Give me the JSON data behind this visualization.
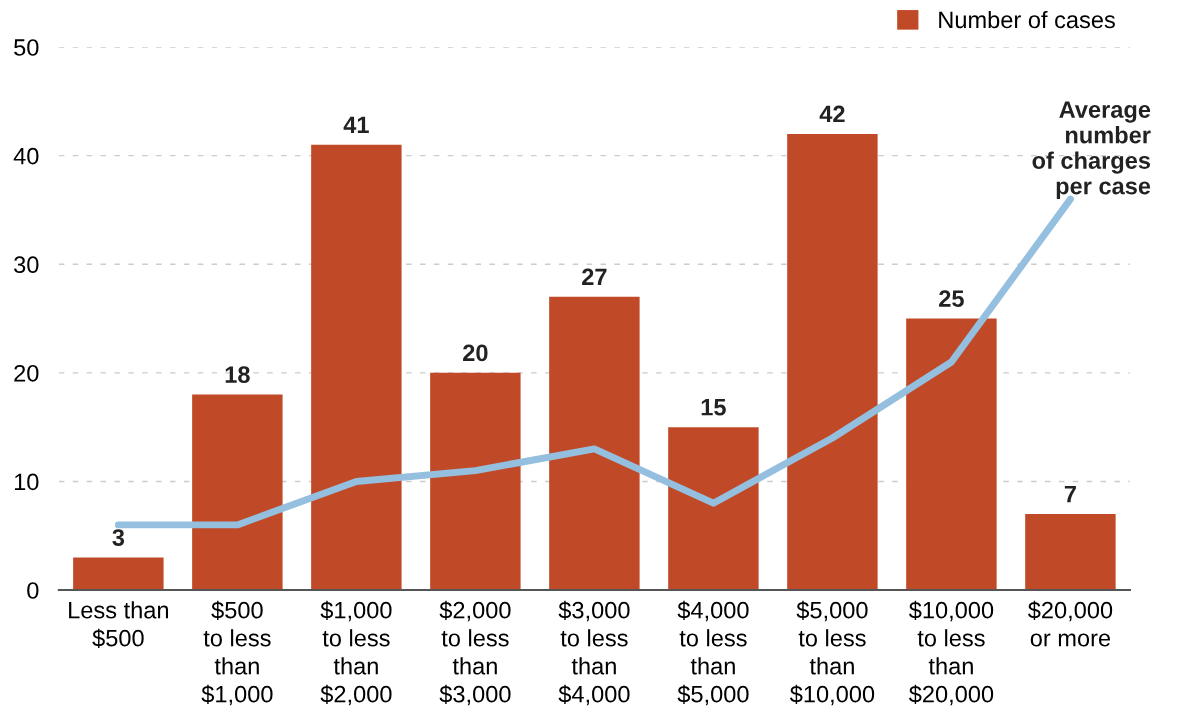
{
  "chart_data": {
    "type": "bar",
    "categories": [
      "Less than\n$500",
      "$500\nto less\nthan\n$1,000",
      "$1,000\nto less\nthan\n$2,000",
      "$2,000\nto less\nthan\n$3,000",
      "$3,000\nto less\nthan\n$4,000",
      "$4,000\nto less\nthan\n$5,000",
      "$5,000\nto less\nthan\n$10,000",
      "$10,000\nto less\nthan\n$20,000",
      "$20,000\nor more"
    ],
    "series": [
      {
        "name": "Number of cases",
        "color": "#c04a27",
        "values": [
          3,
          18,
          41,
          20,
          27,
          15,
          42,
          25,
          7
        ],
        "data_labels": true
      },
      {
        "name": "Average\nnumber\nof charges\nper case",
        "type": "line",
        "color": "#94bfdf",
        "values": [
          6,
          6,
          10,
          11,
          13,
          8,
          14,
          21,
          36
        ]
      }
    ],
    "ylim": [
      0,
      50
    ],
    "yticks": [
      0,
      10,
      20,
      30,
      40,
      50
    ],
    "grid": "y",
    "legend": "top right"
  }
}
